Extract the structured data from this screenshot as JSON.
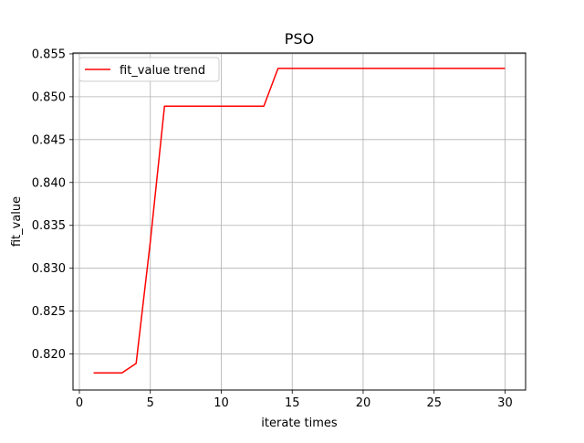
{
  "chart_data": {
    "type": "line",
    "title": "PSO",
    "xlabel": "iterate times",
    "ylabel": "fit_value",
    "xlim": [
      -0.45,
      31.45
    ],
    "ylim": [
      0.8158,
      0.8551
    ],
    "xticks": [
      0,
      5,
      10,
      15,
      20,
      25,
      30
    ],
    "xtick_labels": [
      "0",
      "5",
      "10",
      "15",
      "20",
      "25",
      "30"
    ],
    "yticks": [
      0.82,
      0.825,
      0.83,
      0.835,
      0.84,
      0.845,
      0.85,
      0.855
    ],
    "ytick_labels": [
      "0.820",
      "0.825",
      "0.830",
      "0.835",
      "0.840",
      "0.845",
      "0.850",
      "0.855"
    ],
    "grid": true,
    "legend_position": "upper-left",
    "series": [
      {
        "name": "fit_value trend",
        "color": "#ff0000",
        "x": [
          1,
          2,
          3,
          4,
          5,
          6,
          7,
          8,
          9,
          10,
          11,
          12,
          13,
          14,
          15,
          16,
          17,
          18,
          19,
          20,
          21,
          22,
          23,
          24,
          25,
          26,
          27,
          28,
          29,
          30
        ],
        "y": [
          0.8178,
          0.8178,
          0.8178,
          0.8189,
          0.8331,
          0.8489,
          0.8489,
          0.8489,
          0.8489,
          0.8489,
          0.8489,
          0.8489,
          0.8489,
          0.8533,
          0.8533,
          0.8533,
          0.8533,
          0.8533,
          0.8533,
          0.8533,
          0.8533,
          0.8533,
          0.8533,
          0.8533,
          0.8533,
          0.8533,
          0.8533,
          0.8533,
          0.8533,
          0.8533
        ]
      }
    ]
  }
}
